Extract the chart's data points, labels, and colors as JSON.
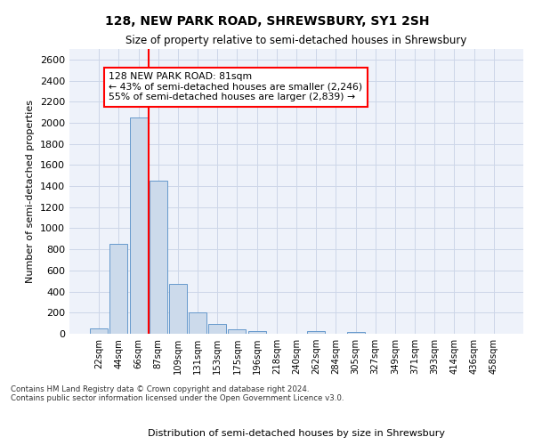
{
  "title1": "128, NEW PARK ROAD, SHREWSBURY, SY1 2SH",
  "title2": "Size of property relative to semi-detached houses in Shrewsbury",
  "xlabel": "Distribution of semi-detached houses by size in Shrewsbury",
  "ylabel": "Number of semi-detached properties",
  "bin_labels": [
    "22sqm",
    "44sqm",
    "66sqm",
    "87sqm",
    "109sqm",
    "131sqm",
    "153sqm",
    "175sqm",
    "196sqm",
    "218sqm",
    "240sqm",
    "262sqm",
    "284sqm",
    "305sqm",
    "327sqm",
    "349sqm",
    "371sqm",
    "393sqm",
    "414sqm",
    "436sqm",
    "458sqm"
  ],
  "bar_values": [
    50,
    850,
    2050,
    1450,
    470,
    200,
    95,
    40,
    25,
    0,
    0,
    25,
    0,
    20,
    0,
    0,
    0,
    0,
    0,
    0,
    0
  ],
  "bar_color": "#ccdaeb",
  "bar_edgecolor": "#6699cc",
  "vline_color": "red",
  "vline_x": 2.5,
  "annotation_text": "128 NEW PARK ROAD: 81sqm\n← 43% of semi-detached houses are smaller (2,246)\n55% of semi-detached houses are larger (2,839) →",
  "annotation_box_color": "white",
  "annotation_box_edgecolor": "red",
  "ylim": [
    0,
    2700
  ],
  "yticks": [
    0,
    200,
    400,
    600,
    800,
    1000,
    1200,
    1400,
    1600,
    1800,
    2000,
    2200,
    2400,
    2600
  ],
  "footnote": "Contains HM Land Registry data © Crown copyright and database right 2024.\nContains public sector information licensed under the Open Government Licence v3.0.",
  "grid_color": "#ccd6e8",
  "background_color": "#eef2fa"
}
